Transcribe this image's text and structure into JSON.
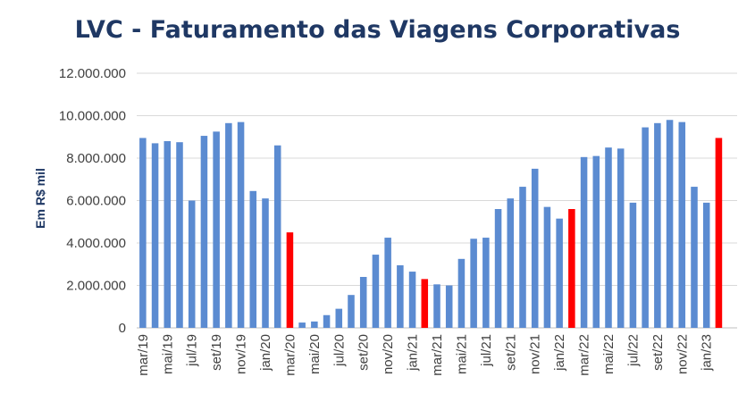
{
  "chart_data": {
    "type": "bar",
    "title": "LVC - Faturamento das Viagens Corporativas",
    "xlabel": "",
    "ylabel": "Em R$ mil",
    "ylim": [
      0,
      12000000
    ],
    "y_ticks": [
      0,
      2000000,
      4000000,
      6000000,
      8000000,
      10000000,
      12000000
    ],
    "y_tick_labels": [
      "0",
      "2.000.000",
      "4.000.000",
      "6.000.000",
      "8.000.000",
      "10.000.000",
      "12.000.000"
    ],
    "grid": true,
    "legend": "none",
    "colors": {
      "default": "#5b8bd1",
      "highlight": "#ff0000"
    },
    "x_tick_labels_shown": [
      "mar/19",
      "mai/19",
      "jul/19",
      "set/19",
      "nov/19",
      "jan/20",
      "mar/20",
      "mai/20",
      "jul/20",
      "set/20",
      "nov/20",
      "jan/21",
      "mar/21",
      "mai/21",
      "jul/21",
      "set/21",
      "nov/21",
      "jan/22",
      "mar/22",
      "mai/22",
      "jul/22",
      "set/22",
      "nov/22",
      "jan/23"
    ],
    "categories": [
      "mar/19",
      "abr/19",
      "mai/19",
      "jun/19",
      "jul/19",
      "ago/19",
      "set/19",
      "out/19",
      "nov/19",
      "dez/19",
      "jan/20",
      "fev/20",
      "mar/20",
      "abr/20",
      "mai/20",
      "jun/20",
      "jul/20",
      "ago/20",
      "set/20",
      "out/20",
      "nov/20",
      "dez/20",
      "jan/21",
      "fev/21",
      "mar/21",
      "abr/21",
      "mai/21",
      "jun/21",
      "jul/21",
      "ago/21",
      "set/21",
      "out/21",
      "nov/21",
      "dez/21",
      "jan/22",
      "fev/22",
      "mar/22",
      "abr/22",
      "mai/22",
      "jun/22",
      "jul/22",
      "ago/22",
      "set/22",
      "out/22",
      "nov/22",
      "dez/22",
      "jan/23",
      "fev/23",
      "mar/23"
    ],
    "values": [
      8950000,
      8700000,
      8800000,
      8750000,
      6000000,
      9050000,
      9250000,
      9650000,
      9700000,
      6450000,
      6100000,
      8600000,
      4500000,
      250000,
      300000,
      600000,
      900000,
      1550000,
      2400000,
      3450000,
      4250000,
      2950000,
      2650000,
      2300000,
      2050000,
      2000000,
      3250000,
      4200000,
      4250000,
      5600000,
      6100000,
      6650000,
      7500000,
      5700000,
      5150000,
      5600000,
      8050000,
      8100000,
      8500000,
      8450000,
      5900000,
      9450000,
      9650000,
      9800000,
      9700000,
      6650000,
      5900000,
      8950000,
      null
    ],
    "highlighted_indices": [
      12,
      23,
      35,
      47
    ]
  }
}
